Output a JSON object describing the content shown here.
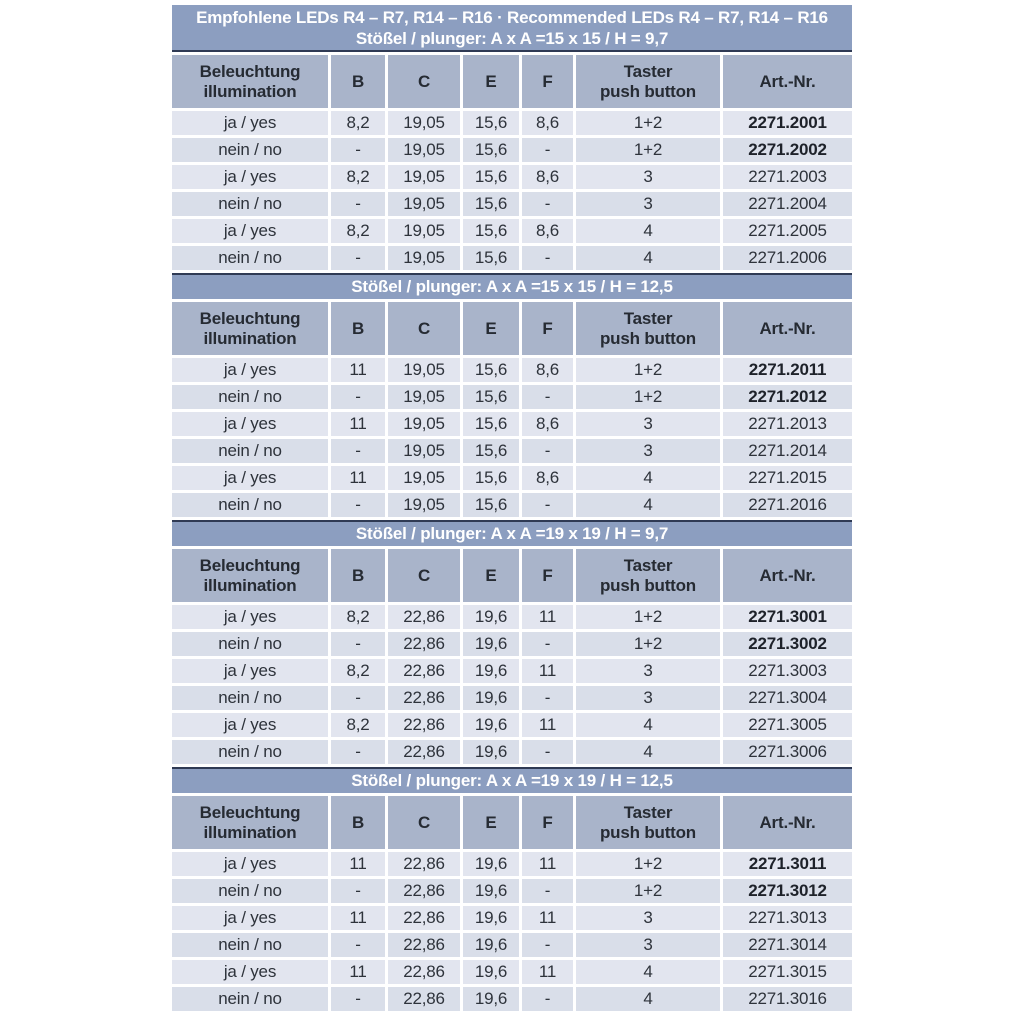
{
  "table": {
    "title": "Empfohlene LEDs R4 – R7, R14 – R16 · Recommended LEDs R4 – R7, R14 – R16"
  },
  "colors": {
    "bar_background": "#8c9ec0",
    "bar_text": "#ffffff",
    "header_background": "#a9b4ca",
    "row_background_light": "#e2e5ef",
    "row_background_dark": "#d9dee9",
    "divider": "#2f3a54",
    "text": "#2e333b"
  },
  "columns": [
    {
      "key": "illumination",
      "lines": [
        "Beleuchtung",
        "illumination"
      ]
    },
    {
      "key": "b",
      "lines": [
        "B"
      ]
    },
    {
      "key": "c",
      "lines": [
        "C"
      ]
    },
    {
      "key": "e",
      "lines": [
        "E"
      ]
    },
    {
      "key": "f",
      "lines": [
        "F"
      ]
    },
    {
      "key": "push-button",
      "lines": [
        "Taster",
        "push button"
      ]
    },
    {
      "key": "art-nr",
      "lines": [
        "Art.-Nr."
      ]
    }
  ],
  "sections": [
    {
      "title": "Stößel / plunger: A x A =15 x 15 / H = 9,7",
      "rows": [
        {
          "bold": true,
          "cells": [
            "ja / yes",
            "8,2",
            "19,05",
            "15,6",
            "8,6",
            "1+2",
            "2271.2001"
          ]
        },
        {
          "bold": true,
          "cells": [
            "nein / no",
            "-",
            "19,05",
            "15,6",
            "-",
            "1+2",
            "2271.2002"
          ]
        },
        {
          "bold": false,
          "cells": [
            "ja / yes",
            "8,2",
            "19,05",
            "15,6",
            "8,6",
            "3",
            "2271.2003"
          ]
        },
        {
          "bold": false,
          "cells": [
            "nein / no",
            "-",
            "19,05",
            "15,6",
            "-",
            "3",
            "2271.2004"
          ]
        },
        {
          "bold": false,
          "cells": [
            "ja / yes",
            "8,2",
            "19,05",
            "15,6",
            "8,6",
            "4",
            "2271.2005"
          ]
        },
        {
          "bold": false,
          "cells": [
            "nein / no",
            "-",
            "19,05",
            "15,6",
            "-",
            "4",
            "2271.2006"
          ]
        }
      ]
    },
    {
      "title": "Stößel / plunger: A x A =15 x 15 / H = 12,5",
      "rows": [
        {
          "bold": true,
          "cells": [
            "ja / yes",
            "11",
            "19,05",
            "15,6",
            "8,6",
            "1+2",
            "2271.2011"
          ]
        },
        {
          "bold": true,
          "cells": [
            "nein / no",
            "-",
            "19,05",
            "15,6",
            "-",
            "1+2",
            "2271.2012"
          ]
        },
        {
          "bold": false,
          "cells": [
            "ja / yes",
            "11",
            "19,05",
            "15,6",
            "8,6",
            "3",
            "2271.2013"
          ]
        },
        {
          "bold": false,
          "cells": [
            "nein / no",
            "-",
            "19,05",
            "15,6",
            "-",
            "3",
            "2271.2014"
          ]
        },
        {
          "bold": false,
          "cells": [
            "ja / yes",
            "11",
            "19,05",
            "15,6",
            "8,6",
            "4",
            "2271.2015"
          ]
        },
        {
          "bold": false,
          "cells": [
            "nein / no",
            "-",
            "19,05",
            "15,6",
            "-",
            "4",
            "2271.2016"
          ]
        }
      ]
    },
    {
      "title": "Stößel / plunger: A x A =19 x 19 / H = 9,7",
      "rows": [
        {
          "bold": true,
          "cells": [
            "ja / yes",
            "8,2",
            "22,86",
            "19,6",
            "11",
            "1+2",
            "2271.3001"
          ]
        },
        {
          "bold": true,
          "cells": [
            "nein / no",
            "-",
            "22,86",
            "19,6",
            "-",
            "1+2",
            "2271.3002"
          ]
        },
        {
          "bold": false,
          "cells": [
            "ja / yes",
            "8,2",
            "22,86",
            "19,6",
            "11",
            "3",
            "2271.3003"
          ]
        },
        {
          "bold": false,
          "cells": [
            "nein / no",
            "-",
            "22,86",
            "19,6",
            "-",
            "3",
            "2271.3004"
          ]
        },
        {
          "bold": false,
          "cells": [
            "ja / yes",
            "8,2",
            "22,86",
            "19,6",
            "11",
            "4",
            "2271.3005"
          ]
        },
        {
          "bold": false,
          "cells": [
            "nein / no",
            "-",
            "22,86",
            "19,6",
            "-",
            "4",
            "2271.3006"
          ]
        }
      ]
    },
    {
      "title": "Stößel / plunger: A x A =19 x 19 / H = 12,5",
      "rows": [
        {
          "bold": true,
          "cells": [
            "ja / yes",
            "11",
            "22,86",
            "19,6",
            "11",
            "1+2",
            "2271.3011"
          ]
        },
        {
          "bold": true,
          "cells": [
            "nein / no",
            "-",
            "22,86",
            "19,6",
            "-",
            "1+2",
            "2271.3012"
          ]
        },
        {
          "bold": false,
          "cells": [
            "ja / yes",
            "11",
            "22,86",
            "19,6",
            "11",
            "3",
            "2271.3013"
          ]
        },
        {
          "bold": false,
          "cells": [
            "nein / no",
            "-",
            "22,86",
            "19,6",
            "-",
            "3",
            "2271.3014"
          ]
        },
        {
          "bold": false,
          "cells": [
            "ja / yes",
            "11",
            "22,86",
            "19,6",
            "11",
            "4",
            "2271.3015"
          ]
        },
        {
          "bold": false,
          "cells": [
            "nein / no",
            "-",
            "22,86",
            "19,6",
            "-",
            "4",
            "2271.3016"
          ]
        }
      ]
    }
  ]
}
